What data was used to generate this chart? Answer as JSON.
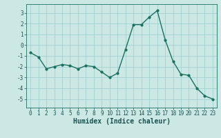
{
  "x": [
    0,
    1,
    2,
    3,
    4,
    5,
    6,
    7,
    8,
    9,
    10,
    11,
    12,
    13,
    14,
    15,
    16,
    17,
    18,
    19,
    20,
    21,
    22,
    23
  ],
  "y": [
    -0.7,
    -1.1,
    -2.2,
    -2.0,
    -1.8,
    -1.9,
    -2.2,
    -1.9,
    -2.0,
    -2.5,
    -3.0,
    -2.6,
    -0.4,
    1.9,
    1.9,
    2.6,
    3.2,
    0.5,
    -1.5,
    -2.7,
    -2.8,
    -4.0,
    -4.7,
    -5.0
  ],
  "line_color": "#1a7060",
  "marker": "o",
  "markersize": 2.0,
  "linewidth": 1.0,
  "xlabel": "Humidex (Indice chaleur)",
  "xlim": [
    -0.5,
    23.5
  ],
  "ylim": [
    -5.8,
    3.8
  ],
  "yticks": [
    -5,
    -4,
    -3,
    -2,
    -1,
    0,
    1,
    2,
    3
  ],
  "xticks": [
    0,
    1,
    2,
    3,
    4,
    5,
    6,
    7,
    8,
    9,
    10,
    11,
    12,
    13,
    14,
    15,
    16,
    17,
    18,
    19,
    20,
    21,
    22,
    23
  ],
  "bg_color": "#cce8e4",
  "grid_color": "#99cccc",
  "tick_fontsize": 5.5,
  "xlabel_fontsize": 7.0
}
